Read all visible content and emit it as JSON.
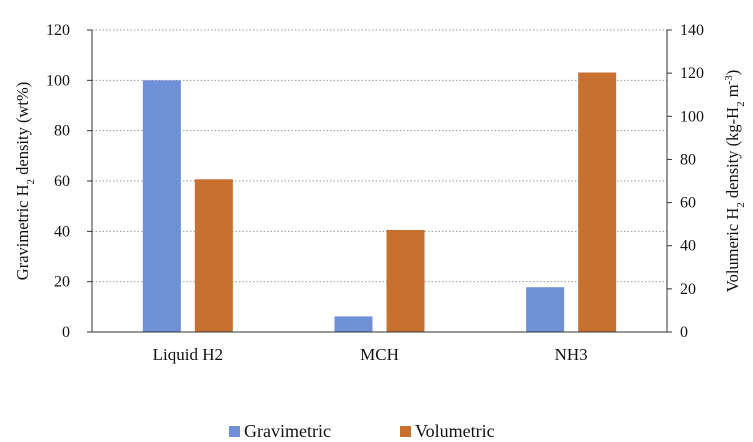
{
  "chart_data": {
    "type": "bar",
    "categories": [
      "Liquid H2",
      "MCH",
      "NH3"
    ],
    "series": [
      {
        "name": "Gravimetric",
        "axis": "left",
        "color": "#6f8fd6",
        "values": [
          100,
          6.2,
          17.8
        ]
      },
      {
        "name": "Volumetric",
        "axis": "right",
        "color": "#c8702f",
        "values": [
          70.8,
          47.3,
          120.3
        ]
      }
    ],
    "y_left": {
      "label_pre": "Gravimetric H",
      "label_sub": "2",
      "label_post": " density (wt%)",
      "ylim": [
        0,
        120
      ],
      "ticks": [
        "0",
        "20",
        "40",
        "60",
        "80",
        "100",
        "120"
      ]
    },
    "y_right": {
      "label_pre": "Volumeric H",
      "label_sub": "2",
      "label_mid": " density (kg-H",
      "label_sub2": "2",
      "label_mid2": " m",
      "label_sup": "-3",
      "label_post": ")",
      "ylim": [
        0,
        140
      ],
      "ticks": [
        "0",
        "20",
        "40",
        "60",
        "80",
        "100",
        "120",
        "140"
      ]
    },
    "grid": true,
    "grid_style": "dotted",
    "legend_position": "bottom",
    "legend": [
      "Gravimetric",
      "Volumetric"
    ]
  }
}
